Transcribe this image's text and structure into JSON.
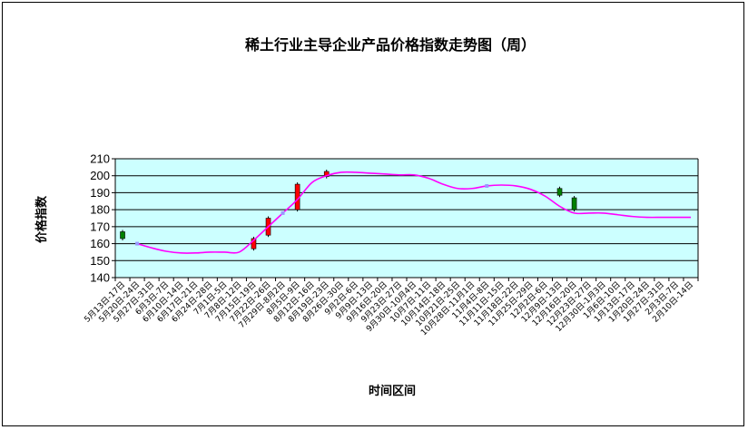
{
  "colors": {
    "plot_background": "#ccffff",
    "gridline": "#000000",
    "line": "#ff00ff",
    "candle_up": "#008000",
    "candle_down": "#ff0000",
    "marker": "#9999ff"
  },
  "chart_data": {
    "type": "line",
    "title": "稀土行业主导企业产品价格指数走势图（周）",
    "xlabel": "时间区间",
    "ylabel": "价格指数",
    "ylim": [
      140,
      210
    ],
    "yticks": [
      140,
      150,
      160,
      170,
      180,
      190,
      200,
      210
    ],
    "grid": true,
    "categories": [
      "5月13日-17日",
      "5月20日-24日",
      "5月27日-31日",
      "6月3日-7日",
      "6月10日-14日",
      "6月17日-21日",
      "6月24日-28日",
      "7月1日-5日",
      "7月8日-12日",
      "7月15日-19日",
      "7月22日-26日",
      "7月29日-8月2日",
      "8月5日-9日",
      "8月12日-16日",
      "8月19日-23日",
      "8月26日-30日",
      "9月2日-6日",
      "9月9日-13日",
      "9月16日-20日",
      "9月23日-27日",
      "9月30日-10月4日",
      "10月7日-11日",
      "10月14日-18日",
      "10月21日-25日",
      "10月28日-11月1日",
      "11月4日-8日",
      "11月11日-15日",
      "11月18日-22日",
      "11月25日-29日",
      "12月2日-6日",
      "12月9日-13日",
      "12月16日-20日",
      "12月23日-27日",
      "12月30日-1月3日",
      "1月6日-10日",
      "1月13日-17日",
      "1月20日-24日",
      "1月27日-31日",
      "2月3日-7日",
      "2月10日-14日"
    ],
    "series": [
      {
        "values": [
          165,
          160,
          157.5,
          155.5,
          154.5,
          154.5,
          155,
          155,
          155,
          162,
          170,
          178,
          186,
          196,
          200,
          202,
          202,
          201.5,
          201,
          200.5,
          200.5,
          198.5,
          195,
          192.5,
          192.5,
          194,
          194.5,
          194,
          192,
          188,
          182,
          178,
          178,
          178,
          177,
          176,
          175.5,
          175.5,
          175.5,
          175.5
        ]
      }
    ],
    "candles": [
      {
        "index": 0,
        "low": 163,
        "high": 167,
        "direction": "up"
      },
      {
        "index": 9,
        "low": 157,
        "high": 163,
        "direction": "down"
      },
      {
        "index": 10,
        "low": 165,
        "high": 175,
        "direction": "down"
      },
      {
        "index": 12,
        "low": 180,
        "high": 195,
        "direction": "down"
      },
      {
        "index": 14,
        "low": 199.5,
        "high": 202.5,
        "direction": "down"
      },
      {
        "index": 30,
        "low": 188.5,
        "high": 192.5,
        "direction": "up"
      },
      {
        "index": 31,
        "low": 180,
        "high": 187,
        "direction": "up"
      }
    ],
    "markers": [
      1,
      11,
      25
    ]
  }
}
